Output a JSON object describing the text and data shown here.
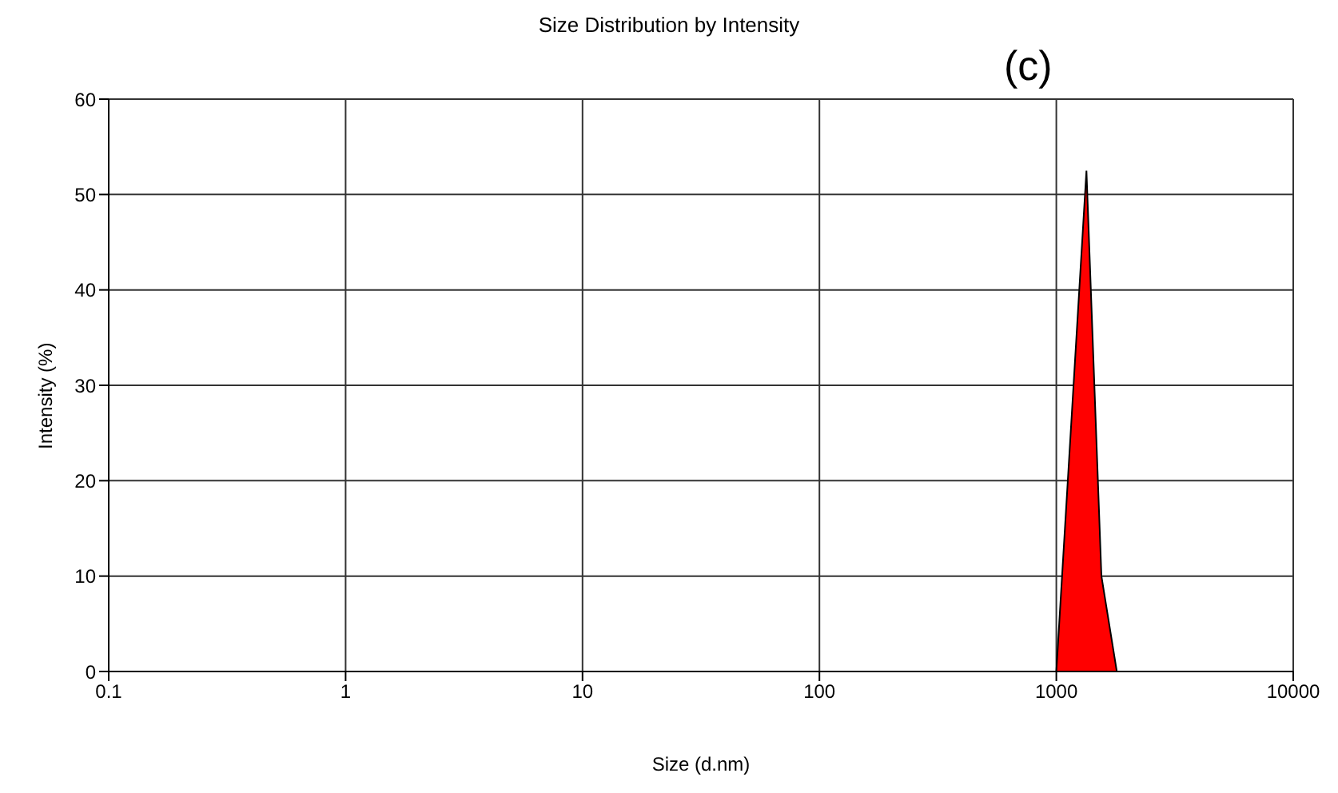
{
  "chart_data": {
    "type": "area",
    "title": "Size Distribution by Intensity",
    "xlabel": "Size (d.nm)",
    "ylabel": "Intensity (%)",
    "annotations": [
      "(c)"
    ],
    "x": [
      0.4,
      1,
      10,
      100,
      1000,
      1340,
      1550,
      1800,
      10000
    ],
    "series": [
      {
        "color": "#ff0000",
        "values": [
          0,
          0,
          0,
          0,
          0,
          52.5,
          10,
          0,
          0
        ]
      }
    ],
    "log": "x",
    "xlim": [
      0.1,
      10000
    ],
    "xticks": [
      0.1,
      1,
      10,
      100,
      1000,
      10000
    ],
    "ylim": [
      0,
      60
    ],
    "yticks": [
      0,
      10,
      20,
      30,
      40,
      50,
      60
    ],
    "grid": true
  }
}
